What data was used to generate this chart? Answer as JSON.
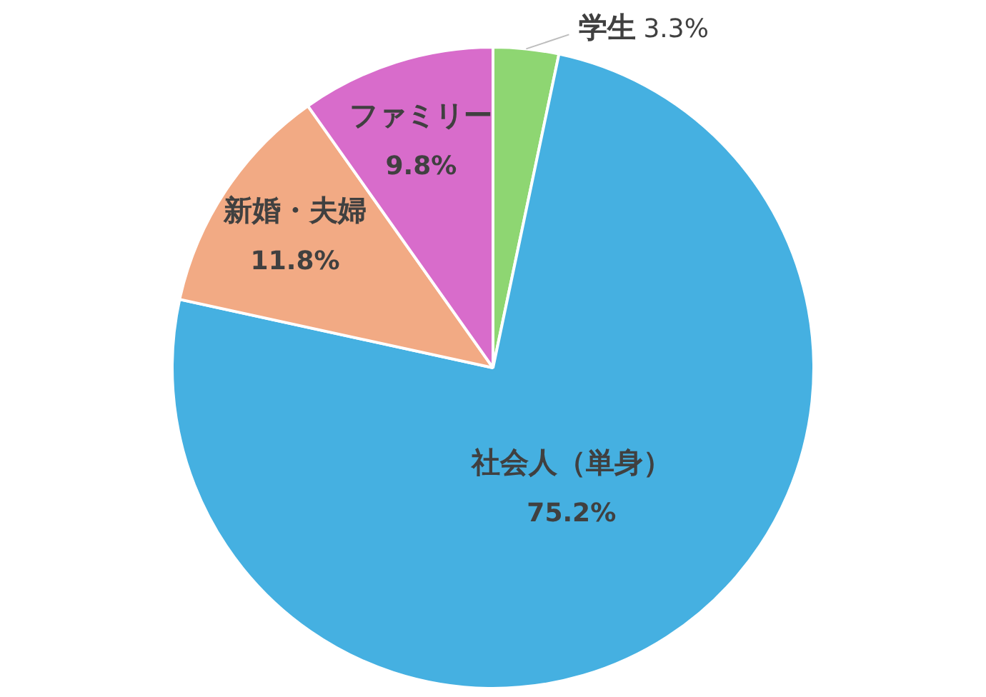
{
  "chart_data": {
    "type": "pie",
    "categories": [
      "学生",
      "社会人（単身）",
      "新婚・夫婦",
      "ファミリー"
    ],
    "values": [
      3.3,
      75.2,
      11.8,
      9.8
    ],
    "colors": [
      "#8ed672",
      "#45b0e1",
      "#f2aa84",
      "#d86ccb"
    ],
    "value_labels": [
      "3.3%",
      "75.2%",
      "11.8%",
      "9.8%"
    ],
    "legend": false
  }
}
